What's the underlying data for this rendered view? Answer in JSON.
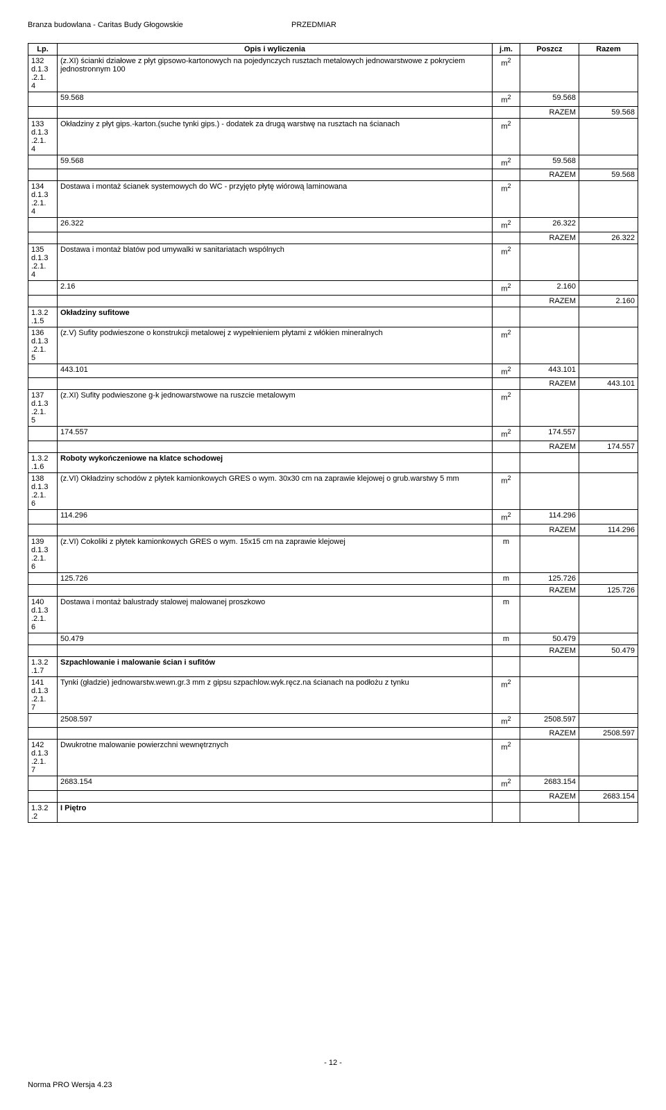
{
  "header": {
    "left": "Branza budowlana - Caritas Budy Głogowskie",
    "right": "PRZEDMIAR"
  },
  "columns": {
    "lp": "Lp.",
    "opis": "Opis i wyliczenia",
    "jm": "j.m.",
    "poszcz": "Poszcz",
    "razem": "Razem"
  },
  "rows": [
    {
      "lp": "132\nd.1.3\n.2.1.\n4",
      "opis": "(z.XI) ścianki działowe z płyt gipsowo-kartonowych na pojedynczych rusztach metalowych jednowarstwowe z pokryciem jednostronnym 100",
      "jm": "m2"
    },
    {
      "opis": "59.568",
      "jm": "m2",
      "poszcz": "59.568"
    },
    {
      "razem_label": "RAZEM",
      "razem": "59.568"
    },
    {
      "lp": "133\nd.1.3\n.2.1.\n4",
      "opis": "Okładziny z płyt gips.-karton.(suche tynki gips.) - dodatek za drugą warstwę na rusztach na ścianach",
      "jm": "m2"
    },
    {
      "opis": "59.568",
      "jm": "m2",
      "poszcz": "59.568"
    },
    {
      "razem_label": "RAZEM",
      "razem": "59.568"
    },
    {
      "lp": "134\nd.1.3\n.2.1.\n4",
      "opis": "Dostawa i montaż ścianek systemowych do WC - przyjęto płytę wiórową laminowana",
      "jm": "m2"
    },
    {
      "opis": "26.322",
      "jm": "m2",
      "poszcz": "26.322"
    },
    {
      "razem_label": "RAZEM",
      "razem": "26.322"
    },
    {
      "lp": "135\nd.1.3\n.2.1.\n4",
      "opis": "Dostawa i montaż blatów pod umywalki w sanitariatach wspólnych",
      "jm": "m2"
    },
    {
      "opis": "2.16",
      "jm": "m2",
      "poszcz": "2.160"
    },
    {
      "razem_label": "RAZEM",
      "razem": "2.160"
    },
    {
      "lp": "1.3.2\n.1.5",
      "opis_bold": "Okładziny sufitowe"
    },
    {
      "lp": "136\nd.1.3\n.2.1.\n5",
      "opis": "(z.V) Sufity podwieszone o konstrukcji metalowej z wypełnieniem płytami z włókien mineralnych",
      "jm": "m2"
    },
    {
      "opis": "443.101",
      "jm": "m2",
      "poszcz": "443.101"
    },
    {
      "razem_label": "RAZEM",
      "razem": "443.101"
    },
    {
      "lp": "137\nd.1.3\n.2.1.\n5",
      "opis": "(z.XI) Sufity podwieszone g-k jednowarstwowe na ruszcie metalowym",
      "jm": "m2"
    },
    {
      "opis": "174.557",
      "jm": "m2",
      "poszcz": "174.557"
    },
    {
      "razem_label": "RAZEM",
      "razem": "174.557"
    },
    {
      "lp": "1.3.2\n.1.6",
      "opis_bold": "Roboty wykończeniowe na klatce schodowej"
    },
    {
      "lp": "138\nd.1.3\n.2.1.\n6",
      "opis": "(z.VI) Okładziny schodów z płytek kamionkowych GRES o wym. 30x30 cm na zaprawie klejowej o grub.warstwy 5 mm",
      "jm": "m2"
    },
    {
      "opis": "114.296",
      "jm": "m2",
      "poszcz": "114.296"
    },
    {
      "razem_label": "RAZEM",
      "razem": "114.296"
    },
    {
      "lp": "139\nd.1.3\n.2.1.\n6",
      "opis": "(z.VI) Cokoliki z płytek kamionkowych GRES o wym. 15x15 cm na zaprawie klejowej",
      "jm": "m"
    },
    {
      "opis": "125.726",
      "jm": "m",
      "poszcz": "125.726"
    },
    {
      "razem_label": "RAZEM",
      "razem": "125.726"
    },
    {
      "lp": "140\nd.1.3\n.2.1.\n6",
      "opis": "Dostawa i montaż balustrady stalowej malowanej proszkowo",
      "jm": "m"
    },
    {
      "opis": "50.479",
      "jm": "m",
      "poszcz": "50.479"
    },
    {
      "razem_label": "RAZEM",
      "razem": "50.479"
    },
    {
      "lp": "1.3.2\n.1.7",
      "opis_bold": "Szpachlowanie i malowanie ścian i sufitów"
    },
    {
      "lp": "141\nd.1.3\n.2.1.\n7",
      "opis": "Tynki (gładzie) jednowarstw.wewn.gr.3 mm z gipsu szpachlow.wyk.ręcz.na ścianach na podłożu z tynku",
      "jm": "m2"
    },
    {
      "opis": "2508.597",
      "jm": "m2",
      "poszcz": "2508.597"
    },
    {
      "razem_label": "RAZEM",
      "razem": "2508.597"
    },
    {
      "lp": "142\nd.1.3\n.2.1.\n7",
      "opis": "Dwukrotne malowanie powierzchni wewnętrznych",
      "jm": "m2"
    },
    {
      "opis": "2683.154",
      "jm": "m2",
      "poszcz": "2683.154"
    },
    {
      "razem_label": "RAZEM",
      "razem": "2683.154"
    },
    {
      "lp": "1.3.2\n.2",
      "opis_bold": "I Piętro"
    }
  ],
  "footer": {
    "page": "- 12 -",
    "norma": "Norma PRO Wersja 4.23"
  }
}
